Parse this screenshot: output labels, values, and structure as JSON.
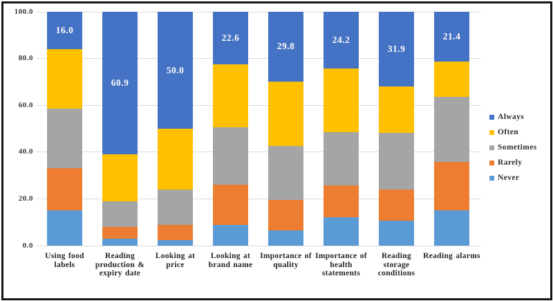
{
  "chart_data": {
    "type": "bar",
    "subtype": "stacked-100-percent-column",
    "title": "",
    "xlabel": "",
    "ylabel": "",
    "ylim": [
      0,
      100
    ],
    "y_ticks": [
      "0.0",
      "20.0",
      "40.0",
      "60.0",
      "80.0",
      "100.0"
    ],
    "grid": "horizontal-light-gray",
    "categories": [
      "Using food labels",
      "Reading production & expiry date",
      "Looking at price",
      "Looking at brand name",
      "Importance of quality",
      "Importance of health statements",
      "Reading storage conditions",
      "Reading alarms"
    ],
    "series": [
      {
        "name": "Never",
        "color": "#5B9BD5",
        "values": [
          15.0,
          3.0,
          2.4,
          8.9,
          6.5,
          12.1,
          10.6,
          15.0
        ]
      },
      {
        "name": "Rarely",
        "color": "#ED7D31",
        "values": [
          18.0,
          5.0,
          6.6,
          17.0,
          13.0,
          13.7,
          13.4,
          20.8
        ]
      },
      {
        "name": "Sometimes",
        "color": "#A5A5A5",
        "values": [
          25.5,
          11.0,
          15.0,
          24.8,
          23.0,
          22.6,
          24.1,
          27.8
        ]
      },
      {
        "name": "Often",
        "color": "#FFC000",
        "values": [
          25.5,
          20.1,
          26.0,
          26.7,
          27.7,
          27.4,
          20.0,
          15.0
        ]
      },
      {
        "name": "Always",
        "color": "#4472C4",
        "values": [
          16.0,
          60.9,
          50.0,
          22.6,
          29.8,
          24.2,
          31.9,
          21.4
        ]
      }
    ],
    "data_labels": {
      "shown_on_series": "Always",
      "values": [
        "16.0",
        "60.9",
        "50.0",
        "22.6",
        "29.8",
        "24.2",
        "31.9",
        "21.4"
      ],
      "color": "#ffffff"
    },
    "legend": {
      "position": "right",
      "items": [
        "Always",
        "Often",
        "Sometimes",
        "Rarely",
        "Never"
      ]
    }
  },
  "frame": {
    "border_color": "#161616",
    "background": "#ffffff"
  }
}
